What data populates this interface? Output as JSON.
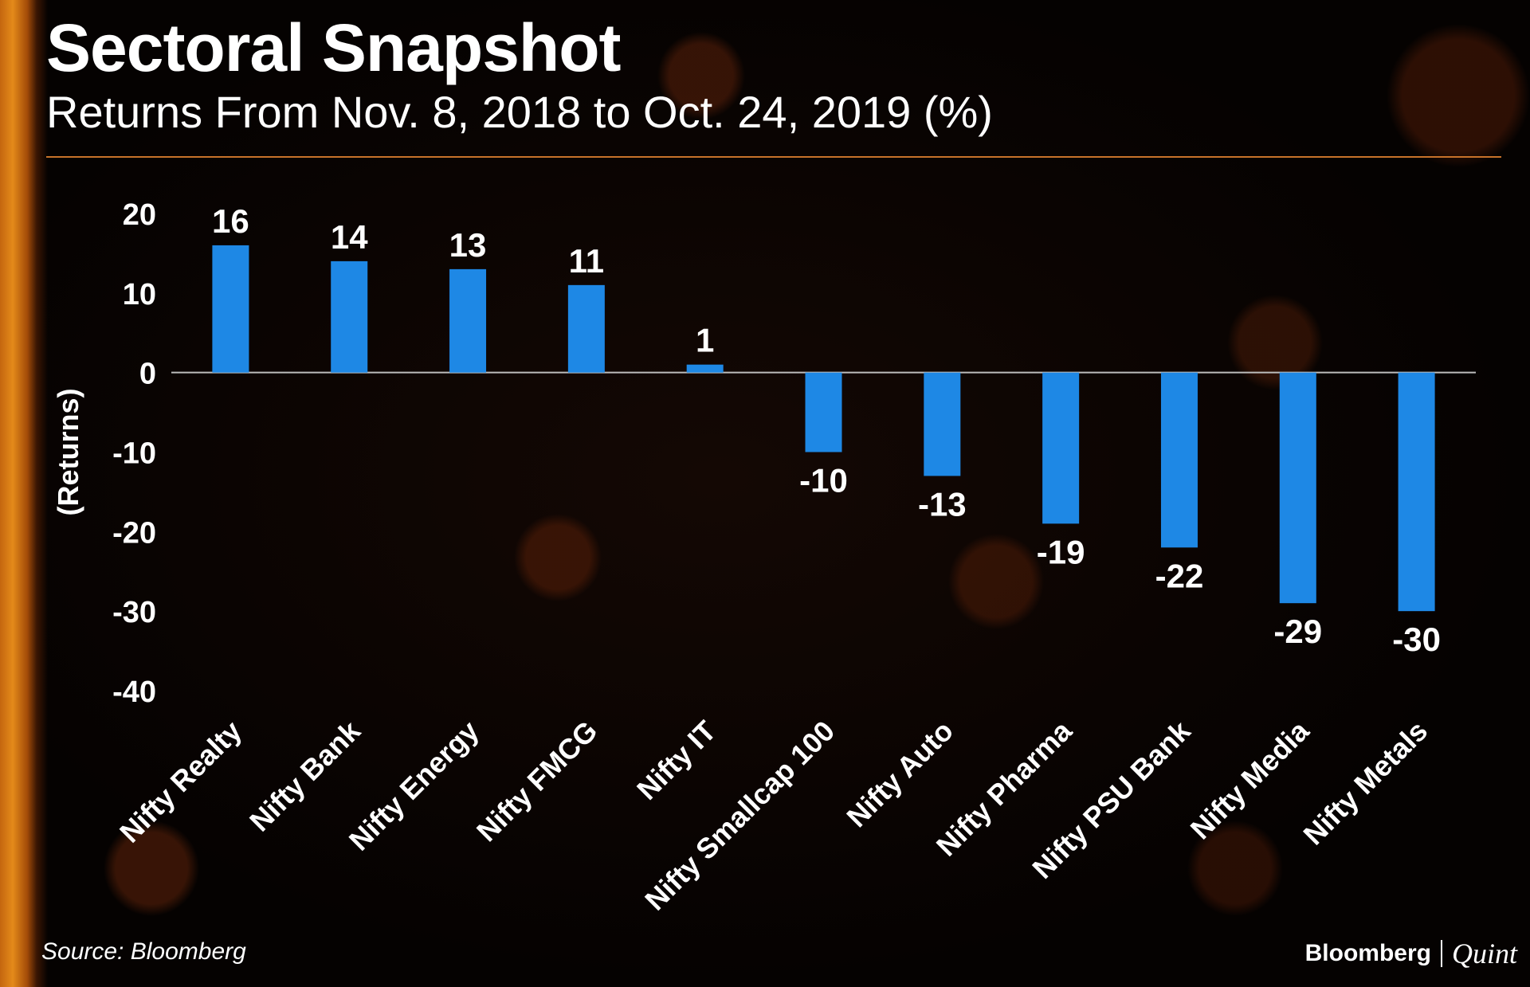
{
  "header": {
    "title": "Sectoral Snapshot",
    "subtitle": "Returns From Nov. 8, 2018 to Oct. 24, 2019 (%)"
  },
  "chart_data": {
    "type": "bar",
    "categories": [
      "Nifty Realty",
      "Nifty Bank",
      "Nifty Energy",
      "Nifty FMCG",
      "Nifty IT",
      "Nifty Smallcap 100",
      "Nifty Auto",
      "Nifty Pharma",
      "Nifty PSU Bank",
      "Nifty Media",
      "Nifty Metals"
    ],
    "values": [
      16,
      14,
      13,
      11,
      1,
      -10,
      -13,
      -19,
      -22,
      -29,
      -30
    ],
    "ylabel": "(Returns)",
    "ylim": [
      -40,
      20
    ],
    "yticks": [
      20,
      10,
      0,
      -10,
      -20,
      -30,
      -40
    ],
    "grid": false,
    "bar_color": "#1e88e5"
  },
  "footer": {
    "source": "Source: Bloomberg",
    "brand": "Bloomberg",
    "brand_sub": "Quint"
  }
}
